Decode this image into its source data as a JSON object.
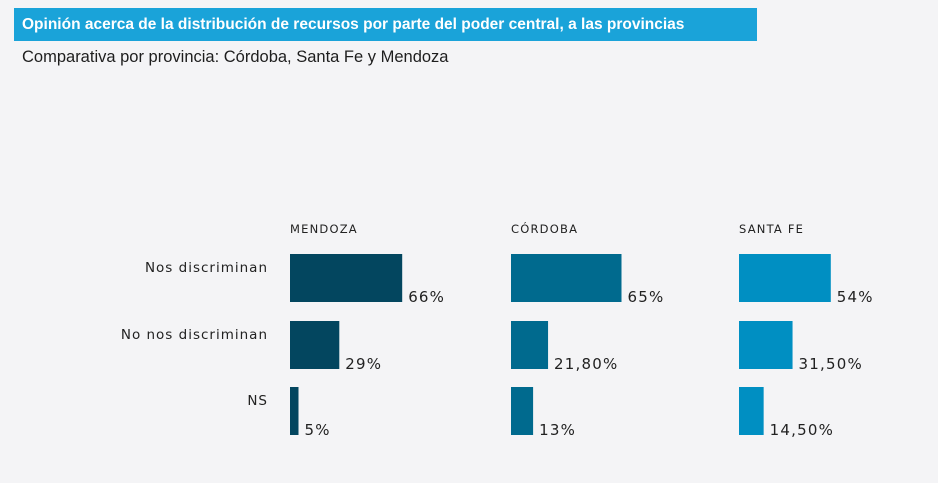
{
  "chart_data": {
    "type": "bar",
    "orientation": "horizontal",
    "title": "Opinión acerca de la distribución de recursos por parte del poder central, a las provincias",
    "subtitle": "Comparativa por provincia: Córdoba, Santa Fe y Mendoza",
    "categories": [
      "Nos discriminan",
      "No nos discriminan",
      "NS"
    ],
    "series": [
      {
        "name": "MENDOZA",
        "color": "#03465f",
        "values": [
          66,
          29,
          5
        ],
        "labels": [
          "66%",
          "29%",
          "5%"
        ]
      },
      {
        "name": "CÓRDOBA",
        "color": "#006a8e",
        "values": [
          65,
          21.8,
          13
        ],
        "labels": [
          "65%",
          "21,80%",
          "13%"
        ]
      },
      {
        "name": "SANTA FE",
        "color": "#008fc2",
        "values": [
          54,
          31.5,
          14.5
        ],
        "labels": [
          "54%",
          "31,50%",
          "14,50%"
        ]
      }
    ],
    "xlabel": "",
    "ylabel": "",
    "unit": "%",
    "grid": false,
    "legend": "none"
  }
}
